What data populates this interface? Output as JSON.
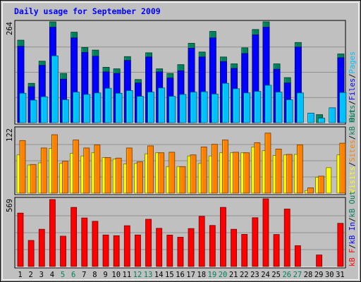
{
  "title": "Daily usage for September 2009",
  "colors": {
    "background": "#C0C0C0",
    "title": "#0000FF",
    "hits": "#00805C",
    "files": "#0000FF",
    "pages": "#00C0FF",
    "visits": "#FFFF00",
    "sites": "#FF8000",
    "kb_out": "#00805C",
    "kb_in": "#0000FF",
    "kb_f": "#FF0000",
    "weekend_label": "#00805C",
    "weekday_label": "#000000"
  },
  "chart_data": [
    {
      "type": "bar",
      "panel": "top",
      "ymax_label": "264",
      "ylim": [
        0,
        264
      ],
      "legend": [
        {
          "text": "Hits",
          "color": "#00805C"
        },
        {
          "text": "Files",
          "color": "#0000FF"
        },
        {
          "text": "Pages",
          "color": "#00C0FF"
        }
      ],
      "categories": [
        "1",
        "2",
        "3",
        "4",
        "5",
        "6",
        "7",
        "8",
        "9",
        "10",
        "11",
        "12",
        "13",
        "14",
        "15",
        "16",
        "17",
        "18",
        "19",
        "20",
        "21",
        "22",
        "23",
        "24",
        "25",
        "26",
        "27",
        "28",
        "29",
        "30",
        "31"
      ],
      "weekend": [
        5,
        6,
        12,
        13,
        19,
        20,
        26,
        27
      ],
      "series": [
        {
          "name": "Hits",
          "color": "#00805C",
          "values": [
            216,
            103,
            161,
            264,
            129,
            237,
            197,
            190,
            145,
            141,
            173,
            113,
            183,
            141,
            129,
            152,
            208,
            185,
            239,
            172,
            154,
            196,
            244,
            264,
            154,
            118,
            210,
            0,
            21,
            0,
            180
          ]
        },
        {
          "name": "Files",
          "color": "#0000FF",
          "values": [
            200,
            94,
            150,
            250,
            114,
            222,
            184,
            174,
            133,
            129,
            163,
            104,
            172,
            133,
            117,
            136,
            195,
            172,
            222,
            160,
            142,
            181,
            230,
            250,
            140,
            104,
            198,
            0,
            0,
            0,
            170
          ]
        },
        {
          "name": "Pages",
          "color": "#00C0FF",
          "values": [
            77,
            59,
            68,
            175,
            60,
            80,
            74,
            78,
            90,
            77,
            84,
            69,
            80,
            91,
            69,
            74,
            80,
            81,
            75,
            103,
            89,
            78,
            82,
            98,
            80,
            60,
            78,
            25,
            12,
            39,
            79
          ]
        }
      ]
    },
    {
      "type": "bar",
      "panel": "middle",
      "ymax_label": "122",
      "ylim": [
        0,
        122
      ],
      "legend": [
        {
          "text": "Visits",
          "color": "#FFFF00"
        },
        {
          "text": "Sites",
          "color": "#FF8000"
        },
        {
          "text": "kB Out",
          "color": "#00805C"
        }
      ],
      "categories": [
        "1",
        "2",
        "3",
        "4",
        "5",
        "6",
        "7",
        "8",
        "9",
        "10",
        "11",
        "12",
        "13",
        "14",
        "15",
        "16",
        "17",
        "18",
        "19",
        "20",
        "21",
        "22",
        "23",
        "24",
        "25",
        "26",
        "27",
        "28",
        "29",
        "30",
        "31"
      ],
      "series": [
        {
          "name": "Visits",
          "color": "#FFFF00",
          "values": [
            72,
            53,
            57,
            84,
            56,
            75,
            70,
            76,
            67,
            64,
            55,
            56,
            74,
            76,
            50,
            50,
            70,
            56,
            70,
            76,
            76,
            76,
            87,
            80,
            71,
            72,
            73,
            5,
            30,
            48,
            72
          ]
        },
        {
          "name": "Sites",
          "color": "#FF8000",
          "values": [
            99,
            54,
            85,
            110,
            60,
            100,
            85,
            91,
            67,
            66,
            85,
            59,
            89,
            76,
            77,
            50,
            72,
            87,
            92,
            100,
            77,
            76,
            95,
            113,
            83,
            73,
            91,
            10,
            32,
            0,
            94
          ]
        }
      ]
    },
    {
      "type": "bar",
      "panel": "bottom",
      "ymax_label": "569",
      "ylim": [
        0,
        569
      ],
      "legend": [
        {
          "text": "kB F",
          "color": "#FF0000"
        },
        {
          "text": "kB In",
          "color": "#0000FF"
        },
        {
          "text": "kB Out",
          "color": "#00805C"
        }
      ],
      "categories": [
        "1",
        "2",
        "3",
        "4",
        "5",
        "6",
        "7",
        "8",
        "9",
        "10",
        "11",
        "12",
        "13",
        "14",
        "15",
        "16",
        "17",
        "18",
        "19",
        "20",
        "21",
        "22",
        "23",
        "24",
        "25",
        "26",
        "27",
        "28",
        "29",
        "30",
        "31"
      ],
      "series": [
        {
          "name": "kB F",
          "color": "#FF0000",
          "values": [
            449,
            219,
            313,
            563,
            255,
            497,
            408,
            380,
            265,
            259,
            343,
            265,
            397,
            321,
            264,
            246,
            319,
            422,
            345,
            497,
            313,
            270,
            410,
            569,
            269,
            483,
            175,
            0,
            97,
            0,
            363
          ]
        }
      ]
    }
  ]
}
